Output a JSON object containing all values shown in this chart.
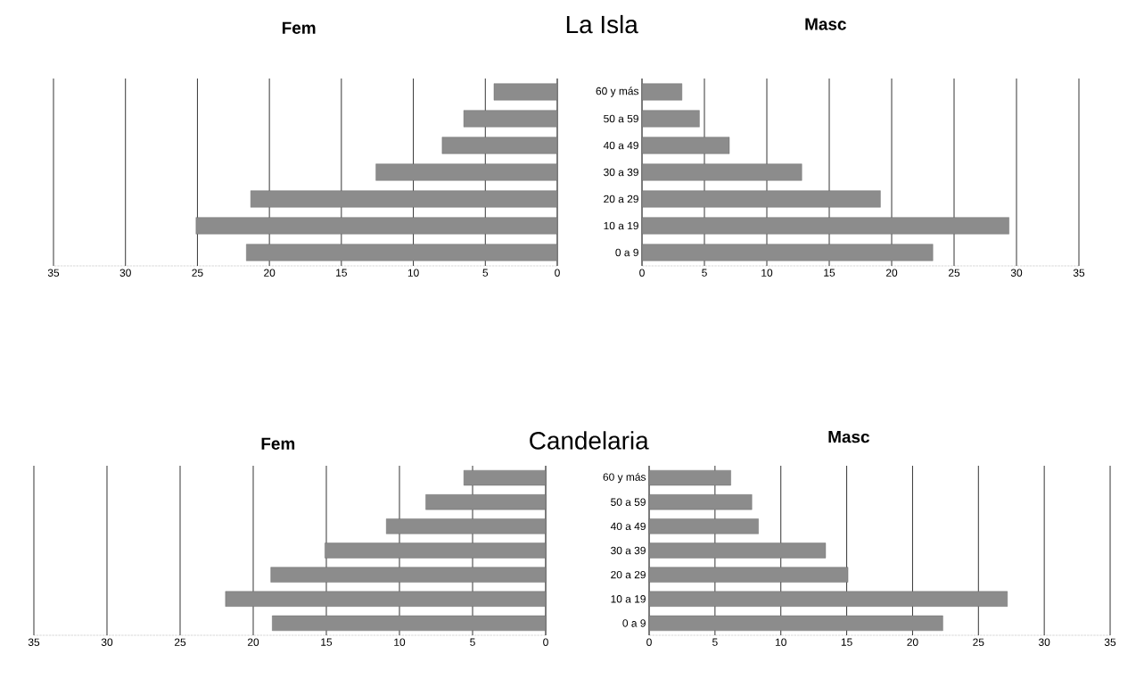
{
  "chart_data": [
    {
      "type": "bar",
      "orientation": "horizontal",
      "title": "La Isla",
      "categories": [
        null,
        null,
        null,
        null,
        null,
        null,
        null
      ],
      "grid": "x",
      "xlim": [
        35,
        0
      ],
      "xticks": [
        35,
        30,
        25,
        20,
        15,
        10,
        5,
        0
      ],
      "series": [
        {
          "name": "Fem",
          "color": "#8c8c8c",
          "values": [
            4.4,
            6.5,
            8.0,
            12.6,
            21.3,
            25.1,
            21.6
          ]
        }
      ]
    },
    {
      "type": "bar",
      "orientation": "horizontal",
      "categories": [
        "60 y más",
        "50 a 59",
        "40 a 49",
        "30 a 39",
        "20 a 29",
        "10 a 19",
        "0 a 9"
      ],
      "grid": "x",
      "xlim": [
        0,
        35
      ],
      "xticks": [
        0,
        5,
        10,
        15,
        20,
        25,
        30,
        35
      ],
      "series": [
        {
          "name": "Masc",
          "color": "#8c8c8c",
          "values": [
            3.2,
            4.6,
            7.0,
            12.8,
            19.1,
            29.4,
            23.3
          ]
        }
      ]
    },
    {
      "type": "bar",
      "orientation": "horizontal",
      "title": "Candelaria",
      "categories": [
        null,
        null,
        null,
        null,
        null,
        null,
        null
      ],
      "grid": "x",
      "xlim": [
        35,
        0
      ],
      "xticks": [
        35,
        30,
        25,
        20,
        15,
        10,
        5,
        0
      ],
      "series": [
        {
          "name": "Fem",
          "color": "#8c8c8c",
          "values": [
            5.6,
            8.2,
            10.9,
            15.1,
            18.8,
            21.9,
            18.7
          ]
        }
      ]
    },
    {
      "type": "bar",
      "orientation": "horizontal",
      "categories": [
        "60 y más",
        "50 a 59",
        "40 a 49",
        "30 a 39",
        "20 a 29",
        "10 a 19",
        "0 a 9"
      ],
      "grid": "x",
      "xlim": [
        0,
        35
      ],
      "xticks": [
        0,
        5,
        10,
        15,
        20,
        25,
        30,
        35
      ],
      "series": [
        {
          "name": "Masc",
          "color": "#8c8c8c",
          "values": [
            6.2,
            7.8,
            8.3,
            13.4,
            15.1,
            27.2,
            22.3
          ]
        }
      ]
    }
  ]
}
